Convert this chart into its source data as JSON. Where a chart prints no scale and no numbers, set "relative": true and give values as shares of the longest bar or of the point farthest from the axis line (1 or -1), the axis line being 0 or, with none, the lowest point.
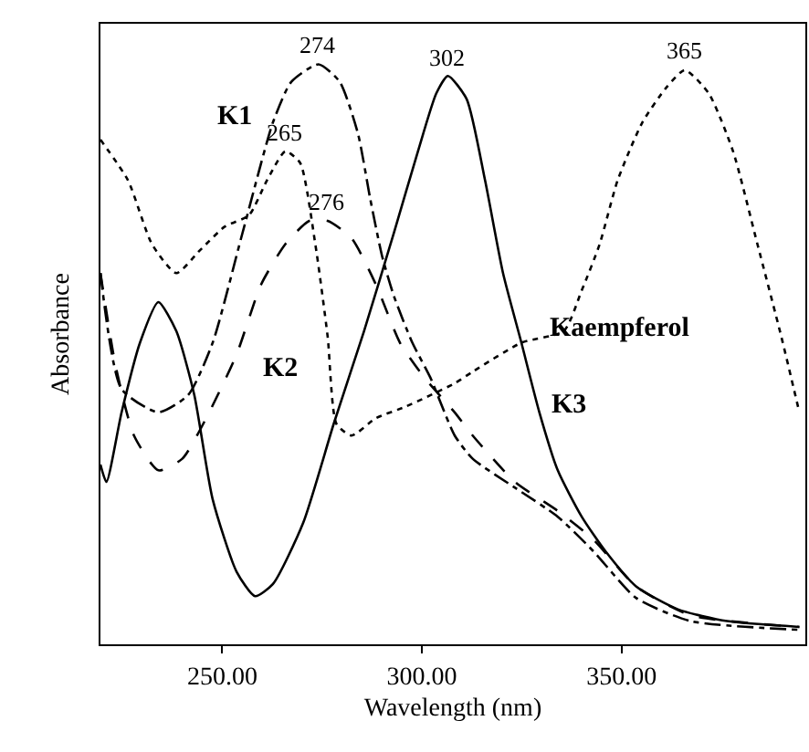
{
  "chart_data": {
    "type": "line",
    "relative": true,
    "xlabel": "Wavelength (nm)",
    "ylabel": "Absorbance",
    "xlim": [
      219.5,
      396
    ],
    "xticks": [
      {
        "value": 250,
        "label": "250.00"
      },
      {
        "value": 300,
        "label": "300.00"
      },
      {
        "value": 350,
        "label": "350.00"
      }
    ],
    "legend": false,
    "grid": false,
    "marker": "none",
    "series": [
      {
        "name": "K1",
        "color": "#000000",
        "line_style": "dashdot",
        "x": [
          219.5,
          224.8,
          234,
          241.5,
          247.6,
          255.1,
          262.7,
          267.3,
          274.1,
          279.4,
          284,
          287,
          290,
          293,
          297.6,
          302.1,
          308.2,
          312.7,
          323.3,
          334,
          343,
          353.6,
          367.3,
          394.5
        ],
        "values": [
          0.64,
          0.44,
          0.4,
          0.43,
          0.52,
          0.71,
          0.9,
          0.97,
          1,
          0.97,
          0.88,
          0.77,
          0.67,
          0.6,
          0.52,
          0.46,
          0.36,
          0.32,
          0.27,
          0.22,
          0.16,
          0.08,
          0.04,
          0.025
        ]
      },
      {
        "name": "K2",
        "color": "#000000",
        "line_style": "dashed",
        "x": [
          219.5,
          223.3,
          227.9,
          234,
          240,
          246,
          253.6,
          259.7,
          265.8,
          271.8,
          276.4,
          282.4,
          288.5,
          294.5,
          300.6,
          308.2,
          312.7,
          323.3,
          334,
          343,
          353.6,
          367.3,
          394.5
        ],
        "values": [
          0.64,
          0.48,
          0.36,
          0.3,
          0.32,
          0.39,
          0.5,
          0.62,
          0.69,
          0.73,
          0.73,
          0.7,
          0.62,
          0.52,
          0.46,
          0.4,
          0.36,
          0.28,
          0.23,
          0.18,
          0.1,
          0.05,
          0.03
        ]
      },
      {
        "name": "K3",
        "color": "#000000",
        "line_style": "solid",
        "x": [
          219.5,
          221,
          224.8,
          229.4,
          234,
          238.5,
          243,
          247.6,
          253.6,
          258.2,
          262.7,
          270.3,
          277.9,
          285.5,
          293,
          299,
          303.6,
          306.5,
          311.2,
          315.8,
          320.3,
          324.9,
          329.4,
          334,
          340,
          346,
          353.6,
          364.2,
          376.4,
          394.5
        ],
        "values": [
          0.31,
          0.28,
          0.4,
          0.52,
          0.59,
          0.54,
          0.43,
          0.25,
          0.125,
          0.083,
          0.104,
          0.21,
          0.38,
          0.54,
          0.71,
          0.85,
          0.95,
          0.98,
          0.94,
          0.8,
          0.64,
          0.52,
          0.4,
          0.3,
          0.22,
          0.16,
          0.1,
          0.06,
          0.04,
          0.03
        ]
      },
      {
        "name": "Kaempferol",
        "color": "#000000",
        "line_style": "dotted",
        "x": [
          219.5,
          226.4,
          232.4,
          238.5,
          244.5,
          250.6,
          256.7,
          261.2,
          265.8,
          269.5,
          273.3,
          276.4,
          278.6,
          282.4,
          288.5,
          296,
          308.2,
          312.7,
          324.9,
          335.5,
          340,
          344.5,
          349,
          355.2,
          361.2,
          365.8,
          371.8,
          377.9,
          384,
          390,
          394.5
        ],
        "values": [
          0.87,
          0.8,
          0.69,
          0.64,
          0.68,
          0.72,
          0.74,
          0.8,
          0.85,
          0.83,
          0.69,
          0.53,
          0.38,
          0.36,
          0.39,
          0.41,
          0.45,
          0.47,
          0.52,
          0.54,
          0.61,
          0.69,
          0.8,
          0.9,
          0.96,
          0.99,
          0.95,
          0.85,
          0.69,
          0.53,
          0.4
        ]
      }
    ],
    "annotations": [
      {
        "text": "274",
        "x": 274.1,
        "y": 1
      },
      {
        "text": "265",
        "x": 265.8,
        "y": 0.85
      },
      {
        "text": "276",
        "x": 276.4,
        "y": 0.73
      },
      {
        "text": "302",
        "x": 306.5,
        "y": 0.98
      },
      {
        "text": "365",
        "x": 365.8,
        "y": 0.99
      }
    ]
  }
}
